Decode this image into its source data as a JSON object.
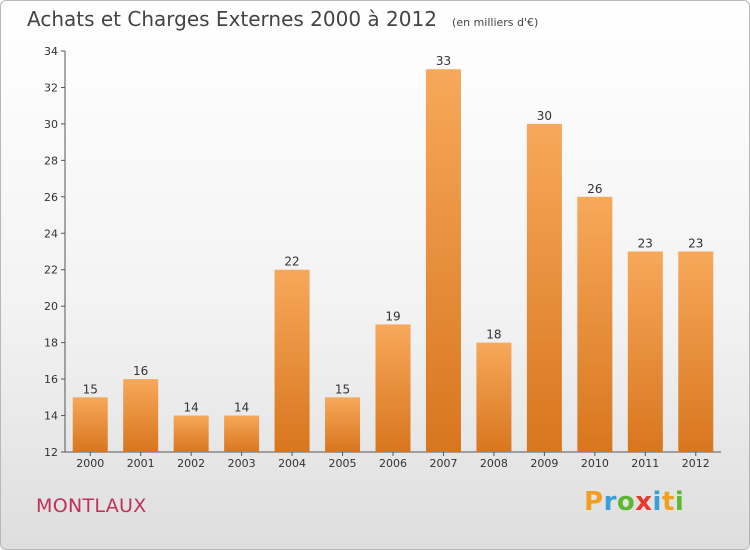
{
  "header": {
    "title": "Achats et Charges Externes 2000 à 2012",
    "unit": "(en milliers d'€)"
  },
  "footer": {
    "city": "MONTLAUX",
    "logo": {
      "letters": [
        "P",
        "r",
        "o",
        "x",
        "i",
        "t",
        "i"
      ],
      "colors": [
        "#f0a020",
        "#3a9fd8",
        "#5cb82e",
        "#e63a2e",
        "#3a9fd8",
        "#f0a020",
        "#5cb82e"
      ]
    }
  },
  "colors": {
    "bar_light": "#f7a85a",
    "bar_dark": "#d8761e",
    "city": "#c0305a"
  },
  "chart_data": {
    "type": "bar",
    "title": "Achats et Charges Externes 2000 à 2012",
    "subtitle": "(en milliers d'€)",
    "xlabel": "",
    "ylabel": "",
    "categories": [
      "2000",
      "2001",
      "2002",
      "2003",
      "2004",
      "2005",
      "2006",
      "2007",
      "2008",
      "2009",
      "2010",
      "2011",
      "2012"
    ],
    "values": [
      15,
      16,
      14,
      14,
      22,
      15,
      19,
      33,
      18,
      30,
      26,
      23,
      23
    ],
    "ylim": [
      12,
      34
    ],
    "yticks": [
      12,
      14,
      16,
      18,
      20,
      22,
      24,
      26,
      28,
      30,
      32,
      34
    ],
    "grid": false,
    "legend": "none"
  }
}
